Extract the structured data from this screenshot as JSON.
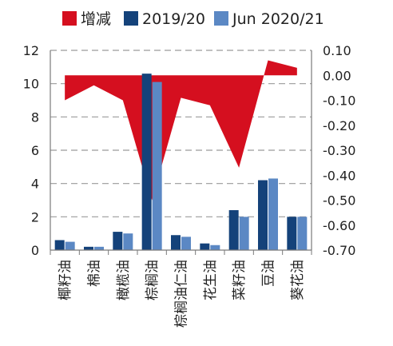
{
  "chart_data": {
    "type": "bar",
    "title": "",
    "xlabel": "",
    "ylabel": "",
    "categories": [
      "椰籽油",
      "棉油",
      "橄榄油",
      "棕榈油",
      "棕榈油仁油",
      "花生油",
      "菜籽油",
      "豆油",
      "葵花油"
    ],
    "series": [
      {
        "name": "增减",
        "type": "area",
        "axis": "right",
        "color": "#d50f1f",
        "values": [
          -0.1,
          -0.04,
          -0.1,
          -0.5,
          -0.09,
          -0.12,
          -0.37,
          0.06,
          0.03
        ]
      },
      {
        "name": "2019/20",
        "type": "bar",
        "axis": "left",
        "color": "#14427a",
        "values": [
          0.6,
          0.2,
          1.1,
          10.6,
          0.9,
          0.4,
          2.4,
          4.2,
          2.0
        ]
      },
      {
        "name": "Jun 2020/21",
        "type": "bar",
        "axis": "left",
        "color": "#5b88c4",
        "values": [
          0.5,
          0.2,
          1.0,
          10.1,
          0.8,
          0.3,
          2.0,
          4.3,
          2.0
        ]
      }
    ],
    "yleft": {
      "min": 0,
      "max": 12,
      "ticks": [
        0,
        2,
        4,
        6,
        8,
        10,
        12
      ]
    },
    "yright": {
      "min": -0.7,
      "max": 0.1,
      "ticks": [
        "0.10",
        "0.00",
        "-0.10",
        "-0.20",
        "-0.30",
        "-0.40",
        "-0.50",
        "-0.60",
        "-0.70"
      ]
    },
    "grid": true,
    "legend": "top"
  }
}
